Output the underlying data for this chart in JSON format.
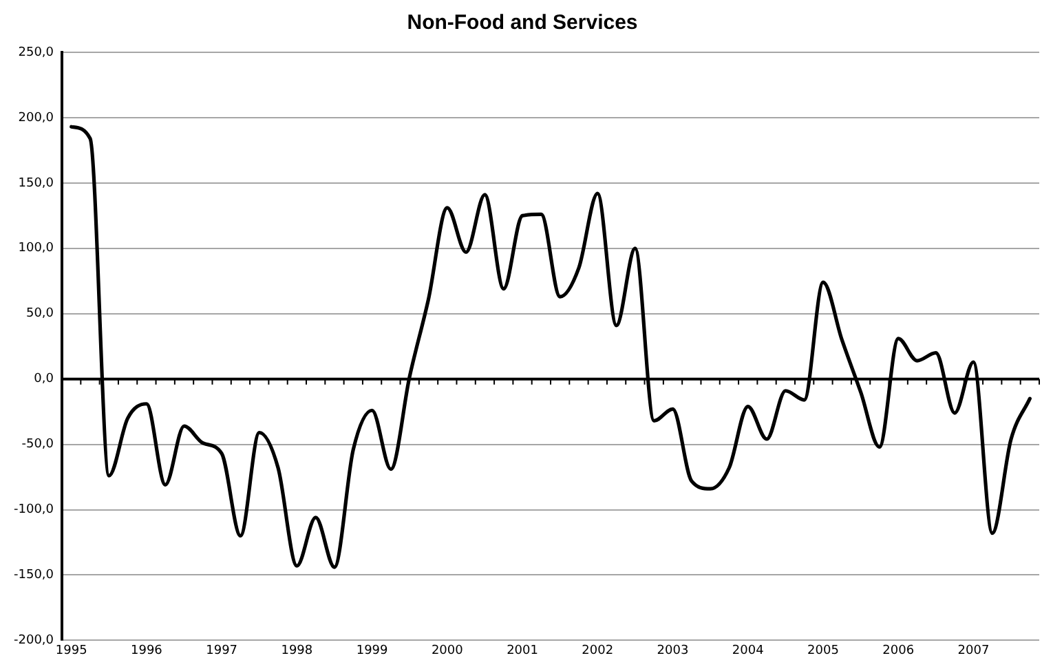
{
  "chart_data": {
    "type": "line",
    "title": "Non-Food and Services",
    "categories": [
      "1995",
      null,
      null,
      null,
      "1996",
      null,
      null,
      null,
      "1997",
      null,
      null,
      null,
      "1998",
      null,
      null,
      null,
      "1999",
      null,
      null,
      null,
      "2000",
      null,
      null,
      null,
      "2001",
      null,
      null,
      null,
      "2002",
      null,
      null,
      null,
      "2003",
      null,
      null,
      null,
      "2004",
      null,
      null,
      null,
      "2005",
      null,
      null,
      null,
      "2006",
      null,
      null,
      null,
      "2007",
      null,
      null,
      null
    ],
    "series": [
      {
        "color": "#000000",
        "values": [
          193,
          184,
          -74,
          -30,
          -19,
          -81,
          -36,
          -49,
          -57,
          -120,
          -41,
          -68,
          -143,
          -106,
          -144,
          -54,
          -24,
          -69,
          2,
          61,
          131,
          97,
          141,
          69,
          125,
          126,
          63,
          85,
          142,
          41,
          100,
          -32,
          -23,
          -78,
          -84,
          -68,
          -21,
          -46,
          -9,
          -16,
          74,
          30,
          -10,
          -52,
          31,
          14,
          20,
          -26,
          13,
          -118,
          -46,
          -15
        ]
      }
    ],
    "ylim": [
      -200,
      250
    ],
    "yticks": [
      {
        "value": -200,
        "label": "-200,0"
      },
      {
        "value": -150,
        "label": "-150,0"
      },
      {
        "value": -100,
        "label": "-100,0"
      },
      {
        "value": -50,
        "label": "-50,0"
      },
      {
        "value": 0,
        "label": "0,0"
      },
      {
        "value": 50,
        "label": "50,0"
      },
      {
        "value": 100,
        "label": "100,0"
      },
      {
        "value": 150,
        "label": "150,0"
      },
      {
        "value": 200,
        "label": "200,0"
      },
      {
        "value": 250,
        "label": "250,0"
      }
    ],
    "grid": "y",
    "legend": false,
    "marker": "none",
    "line_style": "solid"
  }
}
